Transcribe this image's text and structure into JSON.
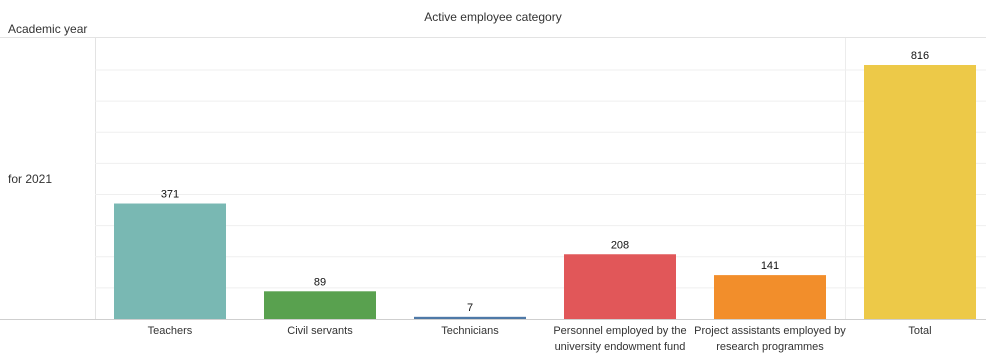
{
  "header": {
    "title": "Active employee category",
    "row_header": "Academic year"
  },
  "rows": [
    {
      "label": "for 2021"
    }
  ],
  "chart_data": {
    "type": "bar",
    "title": "Active employee category",
    "categories": [
      "Teachers",
      "Civil servants",
      "Technicians",
      "Personnel employed by the university endowment fund",
      "Project assistants employed by research programmes",
      "Total"
    ],
    "category_lines": [
      [
        "Teachers"
      ],
      [
        "Civil servants"
      ],
      [
        "Technicians"
      ],
      [
        "Personnel employed by the",
        "university endowment fund"
      ],
      [
        "Project assistants employed by",
        "research programmes"
      ],
      [
        "Total"
      ]
    ],
    "values": [
      371,
      89,
      7,
      208,
      141,
      816
    ],
    "colors": [
      "#79b8b3",
      "#59a14f",
      "#4e79a7",
      "#e15759",
      "#f28e2b",
      "#edc948"
    ],
    "ylim": [
      0,
      860
    ],
    "grid": true,
    "legend": "none"
  }
}
